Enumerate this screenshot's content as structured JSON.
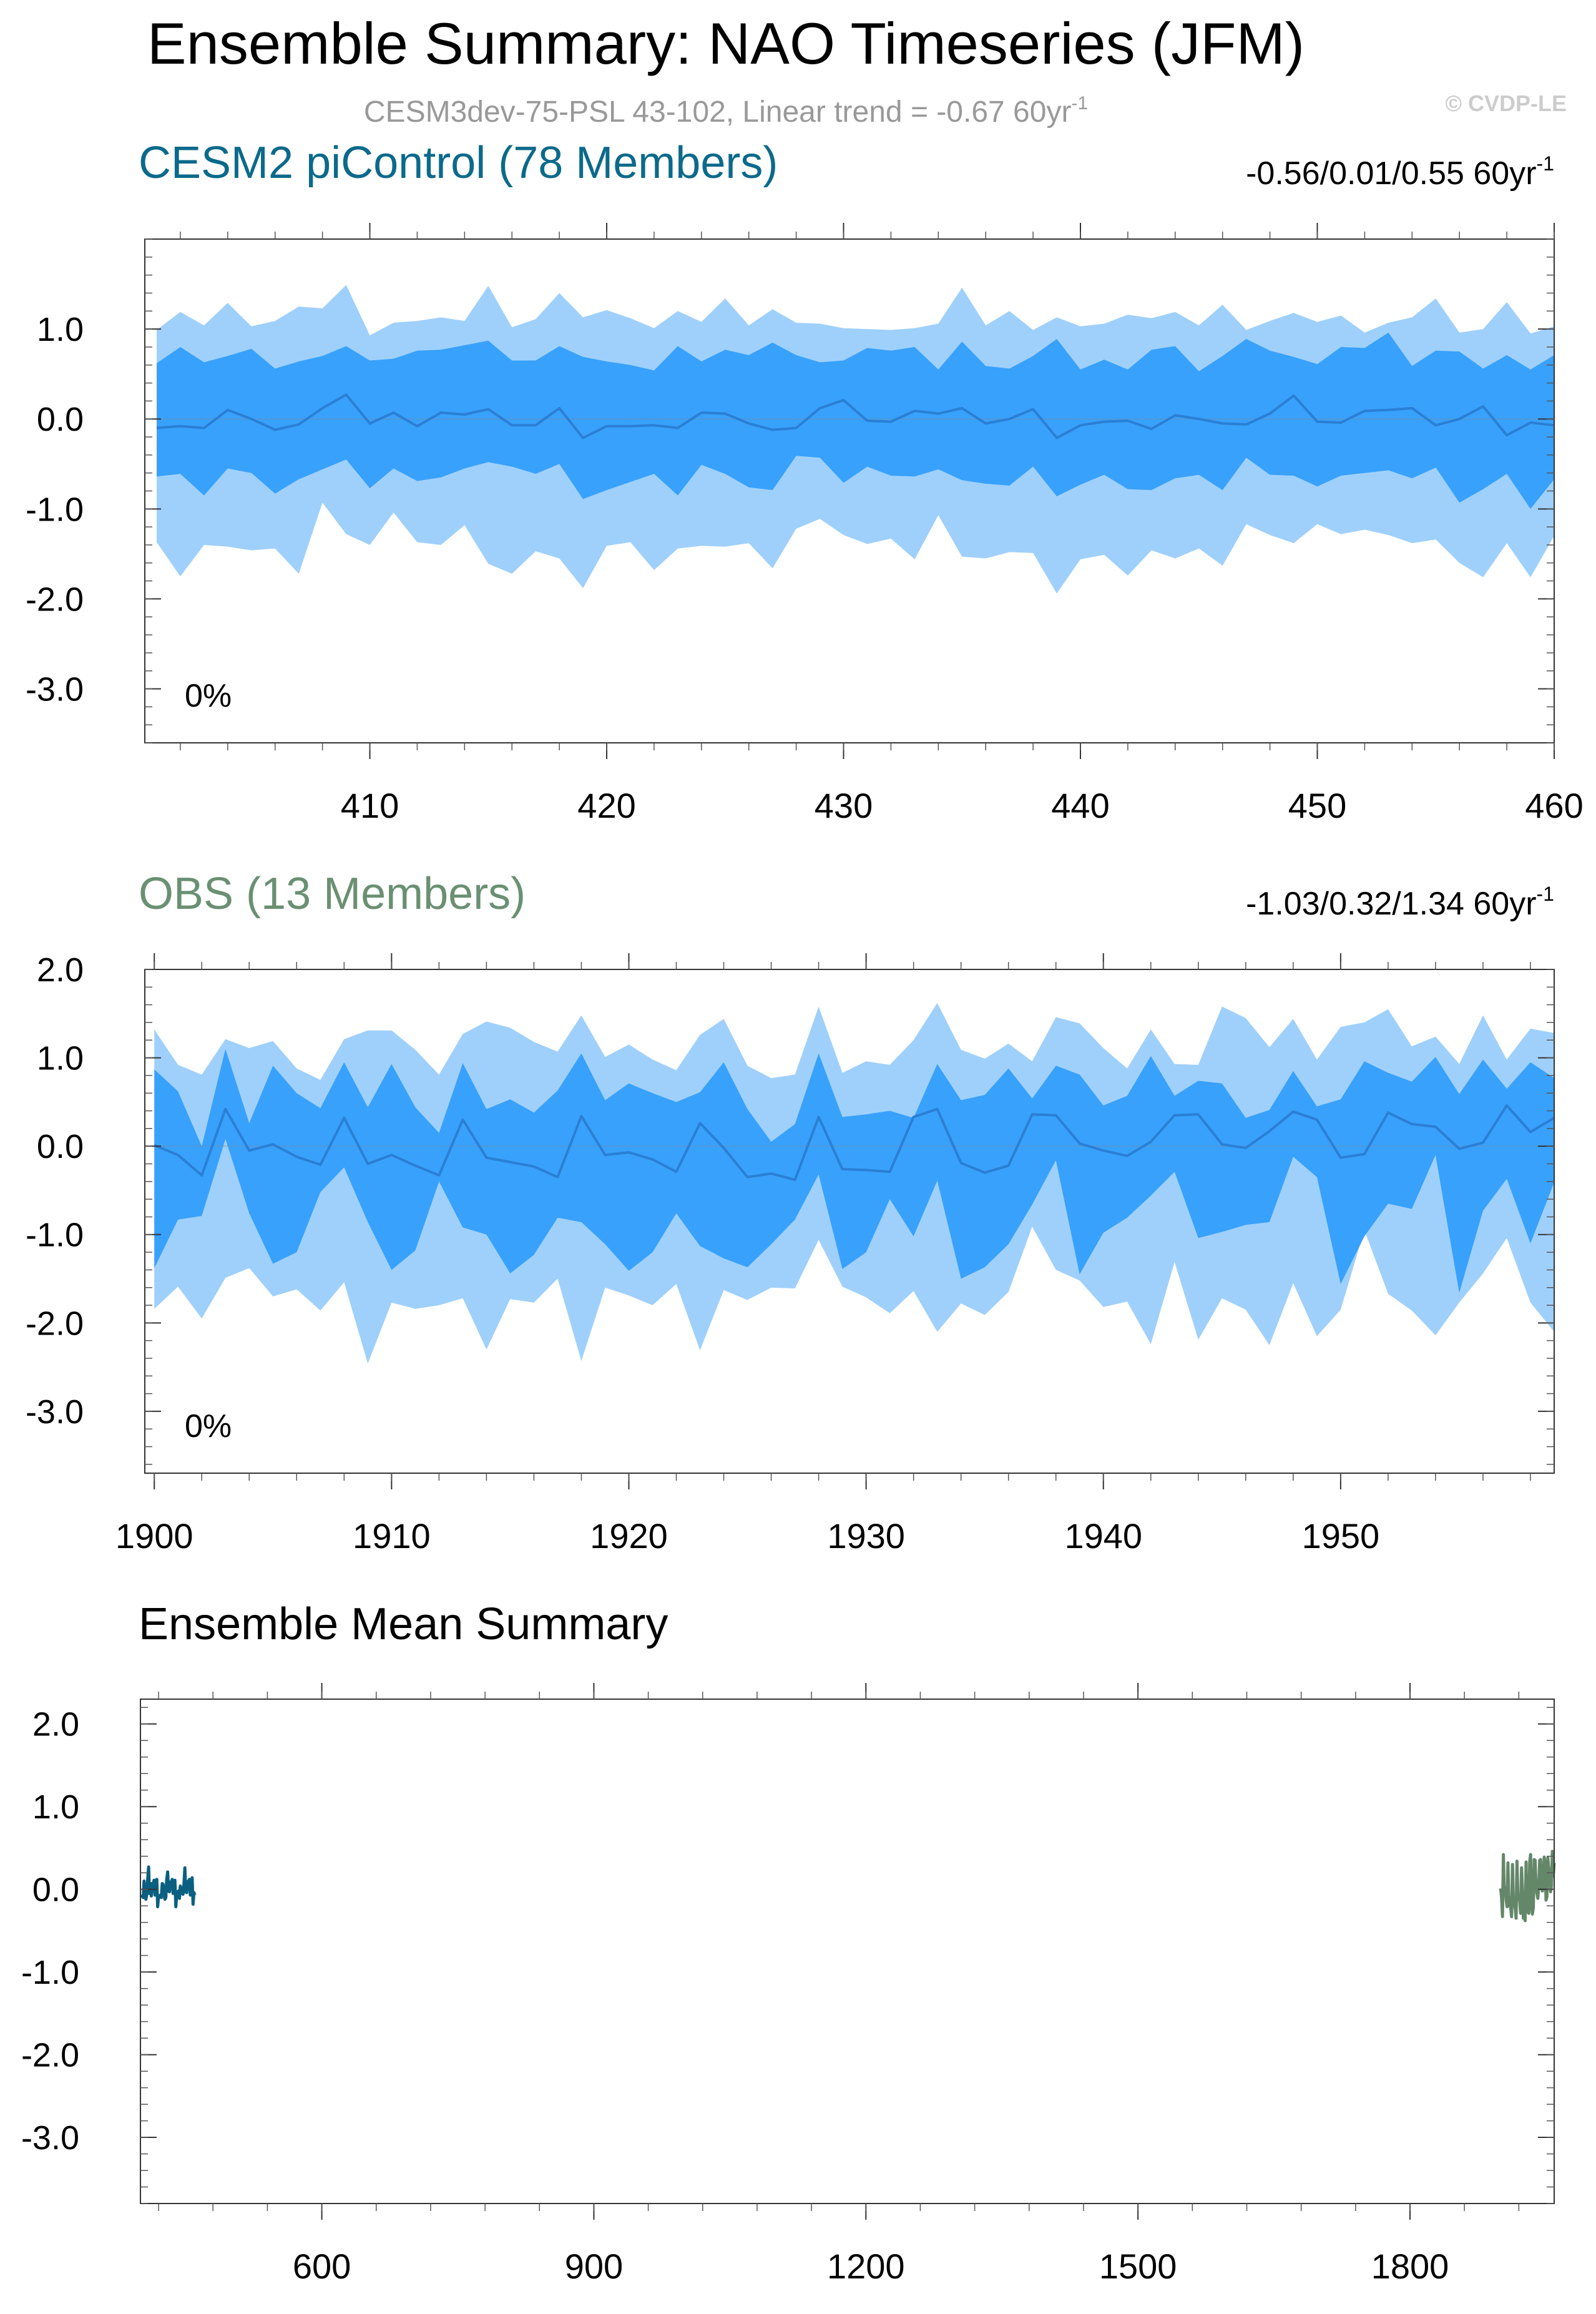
{
  "figure": {
    "title": "Ensemble Summary: NAO Timeseries (JFM)",
    "subtitle": "CESM3dev-75-PSL 43-102, Linear trend = -0.67 60yr",
    "subtitle_sup": "-1",
    "watermark": "© CVDP-LE"
  },
  "colors": {
    "band_outer": "#9fd0fc",
    "band_inner": "#38a1fc",
    "mean_line": "#2a7fd4",
    "model_label": "#0b6a8b",
    "obs_label": "#6a9072",
    "model_mean_trace": "#0b5f80",
    "obs_mean_trace": "#64876a",
    "watermark": "#cccccc",
    "subtitle": "#999999"
  },
  "chart_data": [
    {
      "type": "area",
      "title": "CESM2 piControl (78 Members)",
      "trend_text": "-0.56/0.01/0.55 60yr",
      "trend_sup": "-1",
      "pct_label": "0%",
      "x_start": 401,
      "xlim": [
        400.5,
        460
      ],
      "ylim": [
        -3.6,
        2.0
      ],
      "xticks": [
        410,
        420,
        430,
        440,
        450,
        460
      ],
      "xtick_labels": [
        "410",
        "420",
        "430",
        "440",
        "450",
        "460"
      ],
      "yticks": [
        1.0,
        0.0,
        -1.0,
        -2.0,
        -3.0
      ],
      "ytick_labels": [
        "1.0",
        "0.0",
        "-1.0",
        "-2.0",
        "-3.0"
      ],
      "series": [
        {
          "key": "max",
          "values": [
            0.99,
            1.19,
            1.04,
            1.29,
            1.03,
            1.09,
            1.25,
            1.23,
            1.49,
            0.93,
            1.07,
            1.09,
            1.13,
            1.09,
            1.48,
            1.02,
            1.11,
            1.4,
            1.13,
            1.21,
            1.12,
            1.01,
            1.2,
            1.08,
            1.34,
            1.04,
            1.22,
            1.07,
            1.06,
            1.01,
            1.0,
            0.99,
            1.01,
            1.06,
            1.46,
            1.04,
            1.2,
            0.99,
            1.13,
            1.03,
            1.06,
            1.16,
            1.12,
            1.19,
            1.04,
            1.27,
            0.99,
            1.09,
            1.18,
            1.08,
            1.15,
            0.96,
            1.07,
            1.13,
            1.34,
            0.96,
            1.0,
            1.3,
            0.95,
            1.03
          ]
        },
        {
          "key": "p90",
          "values": [
            0.62,
            0.8,
            0.63,
            0.7,
            0.78,
            0.56,
            0.64,
            0.7,
            0.81,
            0.65,
            0.67,
            0.76,
            0.77,
            0.82,
            0.87,
            0.65,
            0.65,
            0.81,
            0.69,
            0.64,
            0.6,
            0.54,
            0.81,
            0.64,
            0.77,
            0.71,
            0.85,
            0.71,
            0.63,
            0.65,
            0.79,
            0.76,
            0.8,
            0.55,
            0.86,
            0.59,
            0.56,
            0.7,
            0.89,
            0.55,
            0.66,
            0.55,
            0.77,
            0.81,
            0.53,
            0.7,
            0.89,
            0.76,
            0.69,
            0.61,
            0.8,
            0.79,
            0.96,
            0.59,
            0.76,
            0.75,
            0.56,
            0.71,
            0.55,
            0.71
          ]
        },
        {
          "key": "mean",
          "values": [
            -0.1,
            -0.08,
            -0.1,
            0.1,
            0.0,
            -0.12,
            -0.06,
            0.12,
            0.27,
            -0.05,
            0.07,
            -0.08,
            0.07,
            0.05,
            0.11,
            -0.07,
            -0.07,
            0.12,
            -0.21,
            -0.08,
            -0.08,
            -0.07,
            -0.1,
            0.07,
            0.06,
            -0.05,
            -0.12,
            -0.1,
            0.12,
            0.21,
            -0.02,
            -0.03,
            0.09,
            0.06,
            0.12,
            -0.05,
            0.0,
            0.11,
            -0.21,
            -0.07,
            -0.03,
            -0.02,
            -0.11,
            0.04,
            0.0,
            -0.05,
            -0.06,
            0.06,
            0.26,
            -0.03,
            -0.04,
            0.09,
            0.1,
            0.12,
            -0.07,
            0.0,
            0.14,
            -0.18,
            -0.04,
            -0.07
          ]
        },
        {
          "key": "p10",
          "values": [
            -0.64,
            -0.61,
            -0.85,
            -0.55,
            -0.6,
            -0.83,
            -0.67,
            -0.56,
            -0.45,
            -0.77,
            -0.55,
            -0.69,
            -0.65,
            -0.55,
            -0.48,
            -0.53,
            -0.61,
            -0.5,
            -0.89,
            -0.79,
            -0.7,
            -0.61,
            -0.85,
            -0.51,
            -0.61,
            -0.76,
            -0.79,
            -0.41,
            -0.43,
            -0.71,
            -0.53,
            -0.63,
            -0.64,
            -0.56,
            -0.68,
            -0.72,
            -0.74,
            -0.53,
            -0.86,
            -0.73,
            -0.62,
            -0.78,
            -0.79,
            -0.66,
            -0.62,
            -0.79,
            -0.43,
            -0.62,
            -0.63,
            -0.75,
            -0.63,
            -0.6,
            -0.57,
            -0.66,
            -0.54,
            -0.93,
            -0.78,
            -0.61,
            -1.0,
            -0.67
          ]
        },
        {
          "key": "min",
          "values": [
            -1.37,
            -1.75,
            -1.4,
            -1.42,
            -1.46,
            -1.44,
            -1.72,
            -0.93,
            -1.28,
            -1.4,
            -1.04,
            -1.37,
            -1.4,
            -1.18,
            -1.61,
            -1.72,
            -1.47,
            -1.55,
            -1.88,
            -1.41,
            -1.37,
            -1.68,
            -1.44,
            -1.41,
            -1.42,
            -1.38,
            -1.66,
            -1.22,
            -1.11,
            -1.29,
            -1.39,
            -1.33,
            -1.56,
            -1.07,
            -1.53,
            -1.55,
            -1.48,
            -1.49,
            -1.94,
            -1.56,
            -1.51,
            -1.74,
            -1.46,
            -1.55,
            -1.44,
            -1.63,
            -1.17,
            -1.29,
            -1.38,
            -1.17,
            -1.28,
            -1.23,
            -1.29,
            -1.38,
            -1.34,
            -1.6,
            -1.76,
            -1.38,
            -1.76,
            -1.3
          ]
        }
      ]
    },
    {
      "type": "area",
      "title": "OBS (13 Members)",
      "trend_text": "-1.03/0.32/1.34 60yr",
      "trend_sup": "-1",
      "pct_label": "0%",
      "x_start": 1900,
      "xlim": [
        1899.6,
        1959
      ],
      "ylim": [
        -3.7,
        2.0
      ],
      "xticks": [
        1900,
        1910,
        1920,
        1930,
        1940,
        1950
      ],
      "xtick_labels": [
        "1900",
        "1910",
        "1920",
        "1930",
        "1940",
        "1950"
      ],
      "yticks": [
        2.0,
        1.0,
        0.0,
        -1.0,
        -2.0,
        -3.0
      ],
      "ytick_labels": [
        "2.0",
        "1.0",
        "0.0",
        "-1.0",
        "-2.0",
        "-3.0"
      ],
      "series": [
        {
          "key": "max",
          "values": [
            1.32,
            0.92,
            0.81,
            1.21,
            1.11,
            1.19,
            0.88,
            0.75,
            1.21,
            1.31,
            1.31,
            1.09,
            0.81,
            1.27,
            1.41,
            1.34,
            1.18,
            1.07,
            1.48,
            1.01,
            1.15,
            0.98,
            0.86,
            1.26,
            1.44,
            0.91,
            0.77,
            0.81,
            1.58,
            0.83,
            0.96,
            0.92,
            1.2,
            1.62,
            1.09,
            0.99,
            1.16,
            0.96,
            1.46,
            1.39,
            1.11,
            0.88,
            1.32,
            0.93,
            0.92,
            1.58,
            1.45,
            1.12,
            1.44,
            0.98,
            1.35,
            1.4,
            1.55,
            1.13,
            1.24,
            0.93,
            1.48,
            0.98,
            1.33,
            1.28
          ]
        },
        {
          "key": "p90",
          "values": [
            0.87,
            0.62,
            0.0,
            1.1,
            0.26,
            0.91,
            0.6,
            0.43,
            0.95,
            0.44,
            0.93,
            0.44,
            0.15,
            0.94,
            0.42,
            0.53,
            0.38,
            0.63,
            1.05,
            0.52,
            0.71,
            0.6,
            0.5,
            0.61,
            0.95,
            0.42,
            0.05,
            0.25,
            1.05,
            0.33,
            0.36,
            0.4,
            0.32,
            0.93,
            0.52,
            0.58,
            0.88,
            0.54,
            0.91,
            0.81,
            0.46,
            0.57,
            1.02,
            0.57,
            0.74,
            0.71,
            0.32,
            0.41,
            0.85,
            0.45,
            0.53,
            0.96,
            0.83,
            0.73,
            1.01,
            0.59,
            0.98,
            0.65,
            0.95,
            0.77
          ]
        },
        {
          "key": "mean",
          "values": [
            0.01,
            -0.1,
            -0.33,
            0.42,
            -0.05,
            0.02,
            -0.12,
            -0.21,
            0.32,
            -0.2,
            -0.1,
            -0.22,
            -0.33,
            0.3,
            -0.13,
            -0.18,
            -0.23,
            -0.35,
            0.34,
            -0.1,
            -0.07,
            -0.15,
            -0.29,
            0.26,
            -0.02,
            -0.35,
            -0.31,
            -0.38,
            0.33,
            -0.26,
            -0.27,
            -0.29,
            0.33,
            0.42,
            -0.19,
            -0.3,
            -0.22,
            0.36,
            0.35,
            0.03,
            -0.05,
            -0.11,
            0.05,
            0.35,
            0.36,
            0.02,
            -0.02,
            0.17,
            0.39,
            0.3,
            -0.13,
            -0.09,
            0.38,
            0.25,
            0.22,
            -0.03,
            0.04,
            0.46,
            0.16,
            0.32
          ]
        },
        {
          "key": "p10",
          "values": [
            -1.38,
            -0.83,
            -0.79,
            0.08,
            -0.76,
            -1.33,
            -1.2,
            -0.52,
            -0.24,
            -0.86,
            -1.4,
            -1.18,
            -0.4,
            -0.92,
            -1.0,
            -1.44,
            -1.23,
            -0.81,
            -0.86,
            -1.11,
            -1.41,
            -1.2,
            -0.76,
            -1.13,
            -1.27,
            -1.37,
            -1.11,
            -0.83,
            -0.32,
            -1.39,
            -1.2,
            -0.6,
            -1.02,
            -0.39,
            -1.5,
            -1.37,
            -1.11,
            -0.66,
            -0.16,
            -1.45,
            -0.98,
            -0.81,
            -0.56,
            -0.29,
            -1.04,
            -0.97,
            -0.89,
            -0.86,
            -0.12,
            -0.35,
            -1.56,
            -1.02,
            -0.65,
            -0.71,
            -0.1,
            -1.66,
            -0.73,
            -0.37,
            -1.1,
            -0.41
          ]
        },
        {
          "key": "min",
          "values": [
            -1.84,
            -1.59,
            -1.95,
            -1.49,
            -1.38,
            -1.7,
            -1.62,
            -1.86,
            -1.54,
            -2.46,
            -1.77,
            -1.84,
            -1.8,
            -1.72,
            -2.3,
            -1.73,
            -1.77,
            -1.5,
            -2.43,
            -1.6,
            -1.69,
            -1.8,
            -1.56,
            -2.31,
            -1.63,
            -1.74,
            -1.6,
            -1.61,
            -1.06,
            -1.59,
            -1.71,
            -1.89,
            -1.64,
            -2.1,
            -1.78,
            -1.91,
            -1.65,
            -0.91,
            -1.4,
            -1.52,
            -1.82,
            -1.76,
            -2.24,
            -1.31,
            -2.19,
            -1.72,
            -1.85,
            -2.25,
            -1.55,
            -2.15,
            -1.85,
            -0.95,
            -1.67,
            -1.86,
            -2.14,
            -1.77,
            -1.44,
            -1.04,
            -1.77,
            -2.1
          ]
        }
      ]
    },
    {
      "type": "line",
      "title": "Ensemble Mean Summary",
      "xlim": [
        400,
        1959
      ],
      "ylim": [
        -3.8,
        2.3
      ],
      "xticks": [
        600,
        900,
        1200,
        1500,
        1800
      ],
      "xtick_labels": [
        "600",
        "900",
        "1200",
        "1500",
        "1800"
      ],
      "yticks": [
        2.0,
        1.0,
        0.0,
        -1.0,
        -2.0,
        -3.0
      ],
      "ytick_labels": [
        "2.0",
        "1.0",
        "0.0",
        "-1.0",
        "-2.0",
        "-3.0"
      ],
      "series": [
        {
          "key": "model",
          "x_start": 401,
          "color_key": "model_mean_trace",
          "values": [
            -0.1,
            -0.08,
            -0.1,
            0.1,
            0.0,
            -0.12,
            -0.06,
            0.12,
            0.27,
            -0.05,
            0.07,
            -0.08,
            0.07,
            0.05,
            0.11,
            -0.07,
            -0.07,
            0.12,
            -0.21,
            -0.08,
            -0.08,
            -0.07,
            -0.1,
            0.07,
            0.06,
            -0.05,
            -0.12,
            -0.1,
            0.12,
            0.21,
            -0.02,
            -0.03,
            0.09,
            0.06,
            0.12,
            -0.05,
            0.0,
            0.11,
            -0.21,
            -0.07,
            -0.03,
            -0.02,
            -0.11,
            0.04,
            0.0,
            -0.05,
            -0.06,
            0.06,
            0.26,
            -0.03,
            -0.04,
            0.09,
            0.1,
            0.12,
            -0.07,
            0.0,
            0.14,
            -0.18,
            -0.04,
            -0.07
          ]
        },
        {
          "key": "obs",
          "x_start": 1900,
          "color_key": "obs_mean_trace",
          "values": [
            0.01,
            -0.1,
            -0.33,
            0.42,
            -0.05,
            0.02,
            -0.12,
            -0.21,
            0.32,
            -0.2,
            -0.1,
            -0.22,
            -0.33,
            0.3,
            -0.13,
            -0.18,
            -0.23,
            -0.35,
            0.34,
            -0.1,
            -0.07,
            -0.15,
            -0.29,
            0.26,
            -0.02,
            -0.35,
            -0.31,
            -0.38,
            0.33,
            -0.26,
            -0.27,
            -0.29,
            0.33,
            0.42,
            -0.19,
            -0.3,
            -0.22,
            0.36,
            0.35,
            0.03,
            -0.05,
            -0.11,
            0.05,
            0.35,
            0.36,
            0.02,
            -0.02,
            0.17,
            0.39,
            0.3,
            -0.13,
            -0.09,
            0.38,
            0.25,
            0.22,
            -0.03,
            0.04,
            0.46,
            0.16,
            0.32
          ]
        }
      ]
    }
  ]
}
